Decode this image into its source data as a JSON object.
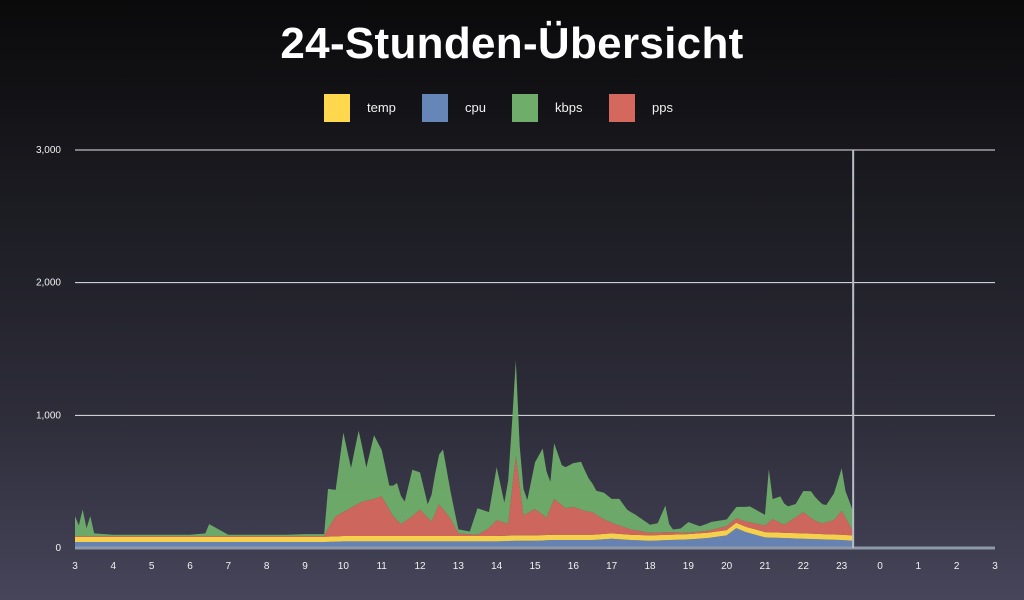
{
  "title": "24-Stunden-Übersicht",
  "legend": [
    {
      "label": "temp",
      "color": "#ffd84d"
    },
    {
      "label": "cpu",
      "color": "#6786b8"
    },
    {
      "label": "kbps",
      "color": "#6fae6a"
    },
    {
      "label": "pps",
      "color": "#d5685d"
    }
  ],
  "chart_data": {
    "type": "area",
    "title": "24-Stunden-Übersicht",
    "xlabel": "",
    "ylabel": "",
    "ylim": [
      0,
      3000
    ],
    "yticks": [
      0,
      1000,
      2000,
      3000
    ],
    "ytick_labels": [
      "0",
      "1,000",
      "2,000",
      "3,000"
    ],
    "xtick_labels": [
      "3",
      "4",
      "5",
      "6",
      "7",
      "8",
      "9",
      "10",
      "11",
      "12",
      "13",
      "14",
      "15",
      "16",
      "17",
      "18",
      "19",
      "20",
      "21",
      "22",
      "23",
      "0",
      "1",
      "2",
      "3"
    ],
    "x_hour_start": 3,
    "x_hour_end": 27,
    "current_time_marker": 23.3,
    "grid": true,
    "legend_position": "top-center",
    "stacking": "stacked",
    "series": [
      {
        "name": "cpu",
        "color": "#6786b8",
        "x": [
          3,
          3.5,
          4,
          4.5,
          5,
          5.5,
          6,
          6.5,
          7,
          7.5,
          8,
          8.5,
          9,
          9.5,
          10,
          10.5,
          11,
          11.5,
          12,
          12.5,
          13,
          13.5,
          14,
          14.5,
          15,
          15.5,
          16,
          16.5,
          17,
          17.5,
          18,
          18.5,
          19,
          19.5,
          20,
          20.25,
          20.5,
          20.75,
          21,
          21.5,
          22,
          22.5,
          23,
          23.3
        ],
        "values": [
          45,
          45,
          45,
          45,
          45,
          45,
          45,
          45,
          45,
          45,
          45,
          45,
          45,
          45,
          50,
          50,
          50,
          50,
          50,
          50,
          50,
          50,
          50,
          55,
          55,
          60,
          60,
          60,
          70,
          60,
          55,
          60,
          65,
          75,
          95,
          150,
          120,
          100,
          80,
          75,
          70,
          65,
          60,
          55
        ]
      },
      {
        "name": "temp",
        "color": "#ffd84d",
        "x": [
          3,
          3.5,
          4,
          4.5,
          5,
          5.5,
          6,
          6.5,
          7,
          7.5,
          8,
          8.5,
          9,
          9.5,
          10,
          10.5,
          11,
          11.5,
          12,
          12.5,
          13,
          13.5,
          14,
          14.5,
          15,
          15.5,
          16,
          16.5,
          17,
          17.5,
          18,
          18.5,
          19,
          19.5,
          20,
          20.25,
          20.5,
          20.75,
          21,
          21.5,
          22,
          22.5,
          23,
          23.3
        ],
        "values": [
          40,
          40,
          40,
          40,
          40,
          40,
          40,
          40,
          40,
          40,
          40,
          40,
          40,
          40,
          40,
          40,
          40,
          40,
          40,
          40,
          40,
          40,
          40,
          40,
          40,
          40,
          40,
          40,
          40,
          40,
          40,
          40,
          40,
          40,
          40,
          40,
          40,
          40,
          40,
          40,
          40,
          40,
          40,
          40
        ]
      },
      {
        "name": "pps",
        "color": "#d5685d",
        "x": [
          3,
          3.5,
          4,
          4.5,
          5,
          5.5,
          6,
          6.5,
          7,
          7.5,
          8,
          8.5,
          9,
          9.5,
          9.6,
          9.8,
          10,
          10.3,
          10.5,
          10.8,
          11,
          11.3,
          11.5,
          11.8,
          12,
          12.3,
          12.5,
          12.8,
          13,
          13.5,
          13.8,
          14,
          14.3,
          14.5,
          14.7,
          15,
          15.3,
          15.5,
          15.8,
          16,
          16.3,
          16.5,
          16.8,
          17,
          17.5,
          18,
          18.5,
          19,
          19.5,
          20,
          20.5,
          21,
          21.2,
          21.5,
          21.8,
          22,
          22.3,
          22.5,
          22.8,
          23,
          23.3
        ],
        "values": [
          5,
          5,
          5,
          5,
          5,
          5,
          5,
          5,
          5,
          5,
          5,
          5,
          5,
          5,
          60,
          150,
          180,
          230,
          260,
          280,
          300,
          150,
          90,
          150,
          200,
          110,
          240,
          130,
          20,
          10,
          60,
          120,
          90,
          600,
          150,
          200,
          130,
          270,
          200,
          210,
          180,
          170,
          110,
          80,
          40,
          20,
          20,
          10,
          15,
          30,
          40,
          50,
          100,
          60,
          120,
          160,
          100,
          80,
          110,
          180,
          30
        ]
      },
      {
        "name": "kbps",
        "color": "#6fae6a",
        "x": [
          3,
          3.1,
          3.2,
          3.3,
          3.4,
          3.5,
          4,
          4.5,
          5,
          5.5,
          6,
          6.4,
          6.5,
          7,
          7.5,
          8,
          8.5,
          9,
          9.5,
          9.6,
          9.8,
          10,
          10.2,
          10.4,
          10.6,
          10.8,
          11,
          11.2,
          11.4,
          11.6,
          11.8,
          12,
          12.2,
          12.4,
          12.6,
          12.8,
          13,
          13.3,
          13.5,
          13.8,
          14,
          14.2,
          14.4,
          14.5,
          14.6,
          14.8,
          15,
          15.2,
          15.4,
          15.5,
          15.7,
          16,
          16.2,
          16.4,
          16.6,
          16.8,
          17,
          17.2,
          17.4,
          17.6,
          18,
          18.2,
          18.4,
          18.5,
          18.6,
          18.8,
          19,
          19.3,
          19.6,
          20,
          20.3,
          20.6,
          21,
          21.1,
          21.2,
          21.4,
          21.6,
          21.8,
          22,
          22.2,
          22.4,
          22.6,
          22.8,
          23,
          23.1,
          23.3
        ],
        "values": [
          150,
          80,
          200,
          60,
          150,
          20,
          10,
          10,
          10,
          10,
          10,
          20,
          90,
          10,
          10,
          10,
          10,
          15,
          15,
          300,
          200,
          600,
          300,
          550,
          250,
          480,
          350,
          180,
          280,
          150,
          350,
          280,
          100,
          300,
          450,
          200,
          30,
          20,
          200,
          120,
          400,
          150,
          500,
          720,
          300,
          100,
          350,
          500,
          200,
          420,
          300,
          330,
          360,
          250,
          180,
          200,
          180,
          200,
          140,
          120,
          60,
          70,
          200,
          60,
          20,
          30,
          80,
          40,
          60,
          50,
          90,
          120,
          80,
          400,
          150,
          200,
          120,
          100,
          160,
          200,
          160,
          130,
          200,
          320,
          200,
          150
        ]
      }
    ]
  }
}
